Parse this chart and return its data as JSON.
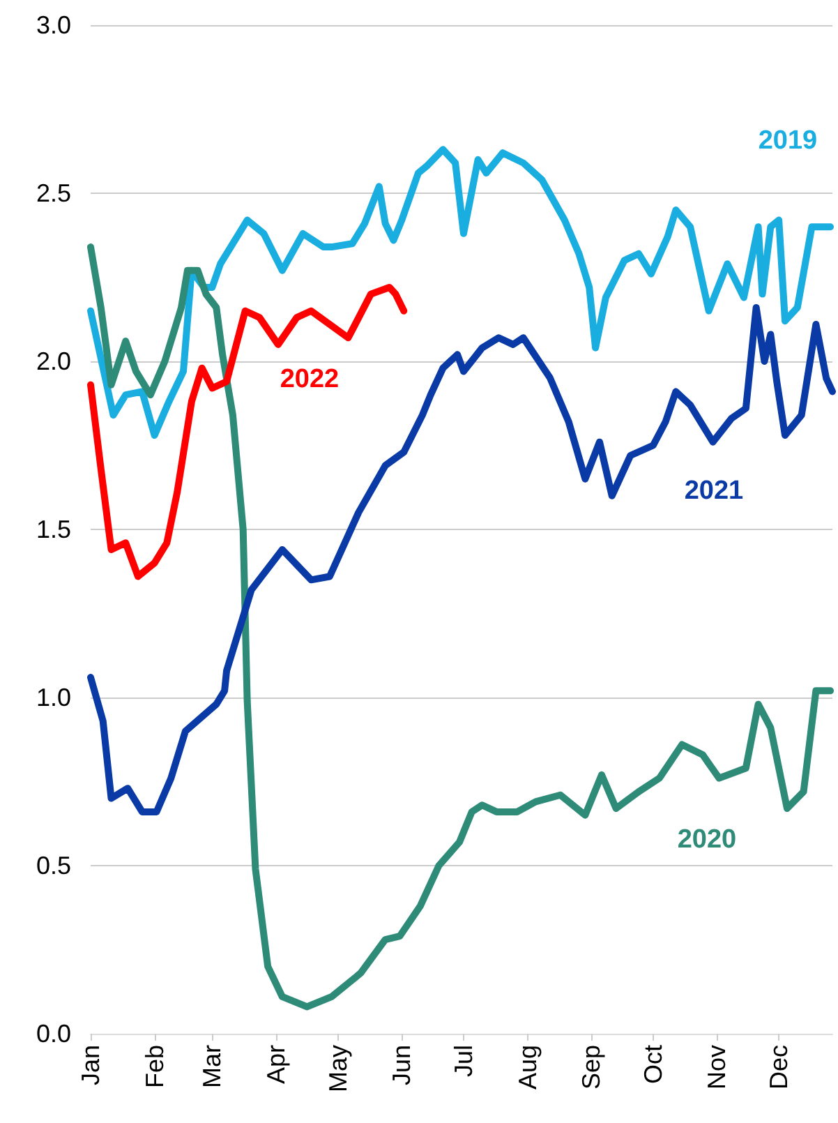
{
  "chart_data": {
    "type": "line",
    "grid": "y",
    "legend": false,
    "marker": "none",
    "line_style": "solid",
    "xlim": [
      "--01-01",
      "--12-27"
    ],
    "ylim": [
      0,
      3
    ],
    "yticks": [
      {
        "value": 0,
        "label": "0.0"
      },
      {
        "value": 0.5,
        "label": "0.5"
      },
      {
        "value": 1,
        "label": "1.0"
      },
      {
        "value": 1.5,
        "label": "1.5"
      },
      {
        "value": 2,
        "label": "2.0"
      },
      {
        "value": 2.5,
        "label": "2.5"
      },
      {
        "value": 3,
        "label": "3.0"
      }
    ],
    "xticks": [
      {
        "value": "--01-01",
        "label": "Jan"
      },
      {
        "value": "--02-01",
        "label": "Feb"
      },
      {
        "value": "--03-01",
        "label": "Mar"
      },
      {
        "value": "--04-01",
        "label": "Apr"
      },
      {
        "value": "--05-01",
        "label": "May"
      },
      {
        "value": "--06-01",
        "label": "Jun"
      },
      {
        "value": "--07-01",
        "label": "Jul"
      },
      {
        "value": "--08-01",
        "label": "Aug"
      },
      {
        "value": "--09-01",
        "label": "Sep"
      },
      {
        "value": "--10-01",
        "label": "Oct"
      },
      {
        "value": "--11-01",
        "label": "Nov"
      },
      {
        "value": "--12-01",
        "label": "Dec"
      }
    ],
    "series": [
      {
        "name": "2019",
        "color": "#1aaee0",
        "x": [
          "--01-01",
          "--01-12",
          "--01-18",
          "--01-26",
          "--02-01",
          "--02-08",
          "--02-15",
          "--02-19",
          "--02-25",
          "--03-01",
          "--03-05",
          "--03-18",
          "--03-26",
          "--04-04",
          "--04-14",
          "--04-24",
          "--04-28",
          "--05-08",
          "--05-14",
          "--05-21",
          "--05-24",
          "--05-28",
          "--06-01",
          "--06-09",
          "--06-13",
          "--06-21",
          "--06-27",
          "--07-01",
          "--07-08",
          "--07-12",
          "--07-20",
          "--07-30",
          "--08-08",
          "--08-19",
          "--08-26",
          "--08-31",
          "--09-03",
          "--09-08",
          "--09-17",
          "--09-24",
          "--09-30",
          "--10-08",
          "--10-12",
          "--10-19",
          "--10-28",
          "--11-06",
          "--11-14",
          "--11-21",
          "--11-23",
          "--11-27",
          "--12-01",
          "--12-04",
          "--12-10",
          "--12-17",
          "--12-26"
        ],
        "values": [
          2.15,
          1.84,
          1.9,
          1.91,
          1.78,
          1.88,
          1.97,
          2.27,
          2.22,
          2.22,
          2.29,
          2.42,
          2.38,
          2.27,
          2.38,
          2.34,
          2.34,
          2.35,
          2.41,
          2.52,
          2.41,
          2.36,
          2.42,
          2.56,
          2.58,
          2.63,
          2.59,
          2.38,
          2.6,
          2.56,
          2.62,
          2.59,
          2.54,
          2.42,
          2.32,
          2.22,
          2.04,
          2.19,
          2.3,
          2.32,
          2.26,
          2.37,
          2.45,
          2.4,
          2.15,
          2.29,
          2.19,
          2.4,
          2.2,
          2.4,
          2.42,
          2.12,
          2.16,
          2.4,
          2.4
        ]
      },
      {
        "name": "2020",
        "color": "#2e8b78",
        "x": [
          "--01-01",
          "--01-06",
          "--01-11",
          "--01-18",
          "--01-23",
          "--01-30",
          "--02-06",
          "--02-14",
          "--02-17",
          "--02-22",
          "--02-26",
          "--03-03",
          "--03-06",
          "--03-11",
          "--03-16",
          "--03-18",
          "--03-22",
          "--03-28",
          "--04-04",
          "--04-16",
          "--04-28",
          "--05-12",
          "--05-24",
          "--05-31",
          "--06-10",
          "--06-19",
          "--06-29",
          "--07-05",
          "--07-10",
          "--07-17",
          "--07-27",
          "--08-05",
          "--08-17",
          "--08-29",
          "--09-06",
          "--09-13",
          "--09-24",
          "--10-04",
          "--10-15",
          "--10-25",
          "--11-02",
          "--11-15",
          "--11-21",
          "--11-27",
          "--12-05",
          "--12-13",
          "--12-19",
          "--12-26"
        ],
        "values": [
          2.34,
          2.16,
          1.93,
          2.06,
          1.97,
          1.9,
          2.0,
          2.16,
          2.27,
          2.27,
          2.2,
          2.16,
          2.02,
          1.84,
          1.5,
          0.99,
          0.49,
          0.2,
          0.11,
          0.08,
          0.11,
          0.18,
          0.28,
          0.29,
          0.38,
          0.5,
          0.57,
          0.66,
          0.68,
          0.66,
          0.66,
          0.69,
          0.71,
          0.65,
          0.77,
          0.67,
          0.72,
          0.76,
          0.86,
          0.83,
          0.76,
          0.79,
          0.98,
          0.91,
          0.67,
          0.72,
          1.02,
          1.02
        ]
      },
      {
        "name": "2021",
        "color": "#0a3aa6",
        "x": [
          "--01-01",
          "--01-07",
          "--01-11",
          "--01-19",
          "--01-26",
          "--02-02",
          "--02-09",
          "--02-16",
          "--03-03",
          "--03-07",
          "--03-08",
          "--03-20",
          "--04-04",
          "--04-18",
          "--04-27",
          "--05-11",
          "--05-24",
          "--06-02",
          "--06-11",
          "--06-15",
          "--06-21",
          "--06-28",
          "--07-01",
          "--07-10",
          "--07-18",
          "--07-25",
          "--07-30",
          "--08-12",
          "--08-21",
          "--08-29",
          "--09-05",
          "--09-11",
          "--09-20",
          "--10-01",
          "--10-07",
          "--10-12",
          "--10-19",
          "--10-30",
          "--11-08",
          "--11-15",
          "--11-20",
          "--11-24",
          "--11-27",
          "--11-30",
          "--12-04",
          "--12-12",
          "--12-19",
          "--12-24",
          "--12-27"
        ],
        "values": [
          1.06,
          0.93,
          0.7,
          0.73,
          0.66,
          0.66,
          0.76,
          0.9,
          0.98,
          1.02,
          1.08,
          1.32,
          1.44,
          1.35,
          1.36,
          1.55,
          1.69,
          1.73,
          1.84,
          1.9,
          1.98,
          2.02,
          1.97,
          2.04,
          2.07,
          2.05,
          2.07,
          1.95,
          1.82,
          1.65,
          1.76,
          1.6,
          1.72,
          1.75,
          1.82,
          1.91,
          1.87,
          1.76,
          1.83,
          1.86,
          2.16,
          2.0,
          2.08,
          1.94,
          1.78,
          1.84,
          2.11,
          1.95,
          1.91
        ]
      },
      {
        "name": "2022",
        "color": "#ff0000",
        "x": [
          "--01-01",
          "--01-06",
          "--01-11",
          "--01-18",
          "--01-24",
          "--02-01",
          "--02-07",
          "--02-12",
          "--02-19",
          "--02-24",
          "--03-01",
          "--03-08",
          "--03-17",
          "--03-24",
          "--04-02",
          "--04-11",
          "--04-18",
          "--04-27",
          "--05-06",
          "--05-17",
          "--05-26",
          "--05-29",
          "--06-02"
        ],
        "values": [
          1.93,
          1.68,
          1.44,
          1.46,
          1.36,
          1.4,
          1.46,
          1.61,
          1.88,
          1.98,
          1.92,
          1.94,
          2.15,
          2.13,
          2.05,
          2.13,
          2.15,
          2.11,
          2.07,
          2.2,
          2.22,
          2.2,
          2.15
        ]
      }
    ]
  }
}
